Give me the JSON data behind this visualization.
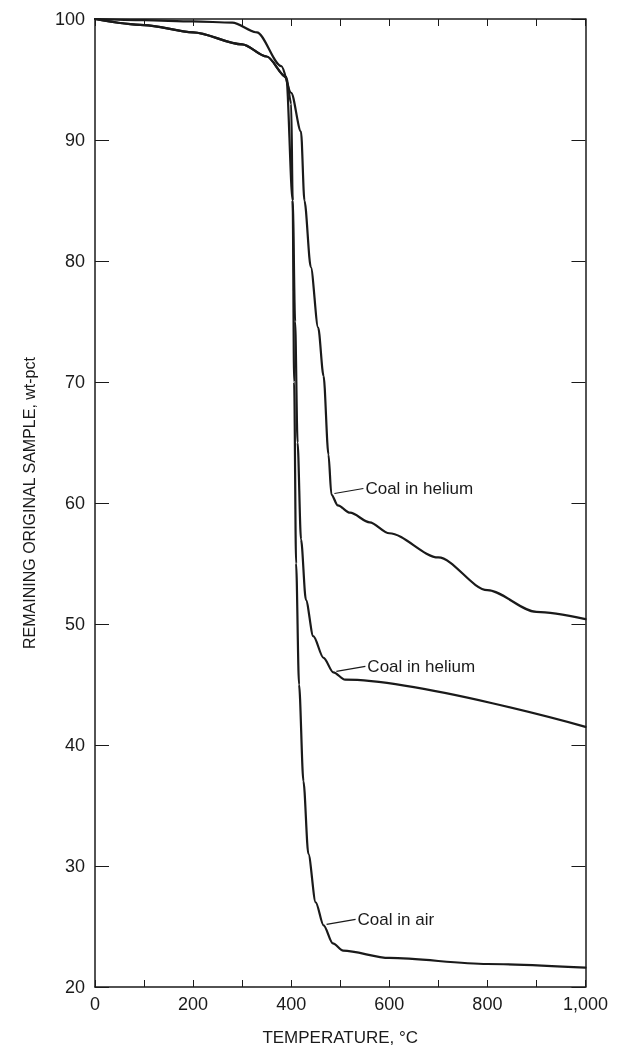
{
  "chart_data": {
    "type": "line",
    "xlabel": "TEMPERATURE, °C",
    "ylabel": "REMAINING ORIGINAL SAMPLE, wt-pct",
    "xlim": [
      0,
      1000
    ],
    "xticks": [
      0,
      {
        "value": 100,
        "label": null
      },
      200,
      {
        "value": 300,
        "label": null
      },
      400,
      {
        "value": 500,
        "label": null
      },
      600,
      {
        "value": 700,
        "label": null
      },
      800,
      {
        "value": 900,
        "label": null
      },
      {
        "value": 1000,
        "label": "1,000"
      }
    ],
    "ylim": [
      20,
      100
    ],
    "yticks": [
      20,
      30,
      40,
      50,
      60,
      70,
      80,
      90,
      100
    ],
    "grid": false,
    "marker": "none",
    "line_style": "solid",
    "series": [
      {
        "color": "#1a1a1a",
        "x": [
          0,
          100,
          200,
          280,
          330,
          380,
          400,
          420,
          427,
          440,
          455,
          466,
          476,
          482,
          495,
          520,
          560,
          600,
          700,
          800,
          900,
          1000
        ],
        "values": [
          100,
          99.9,
          99.8,
          99.7,
          98.9,
          96.1,
          93.9,
          90.7,
          85,
          79.5,
          74.5,
          70.5,
          64,
          60.7,
          59.8,
          59.2,
          58.4,
          57.5,
          55.5,
          52.8,
          51.0,
          50.4
        ]
      },
      {
        "color": "#1a1a1a",
        "x": [
          0,
          100,
          200,
          300,
          350,
          390,
          403,
          408,
          413,
          420,
          430,
          445,
          466,
          486,
          510,
          1000
        ],
        "values": [
          100,
          99.5,
          98.9,
          97.9,
          96.9,
          95.2,
          85,
          75,
          65,
          57,
          52,
          49,
          47.2,
          46,
          45.4,
          41.5
        ]
      },
      {
        "color": "#1a1a1a",
        "x": [
          0,
          100,
          200,
          300,
          350,
          390,
          400,
          403,
          406,
          410,
          416,
          425,
          435,
          450,
          466,
          485,
          506,
          600,
          800,
          1000
        ],
        "values": [
          100,
          99.5,
          98.9,
          97.9,
          96.9,
          95.2,
          93,
          85,
          70,
          55,
          45,
          37,
          31,
          27,
          25.1,
          23.6,
          23,
          22.4,
          21.9,
          21.6
        ]
      }
    ],
    "annotations": [
      {
        "text": "Coal in helium",
        "x": 482,
        "y": 60.7
      },
      {
        "text": "Coal in helium",
        "x": 486,
        "y": 46
      },
      {
        "text": "Coal in air",
        "x": 466,
        "y": 25.1
      }
    ]
  }
}
